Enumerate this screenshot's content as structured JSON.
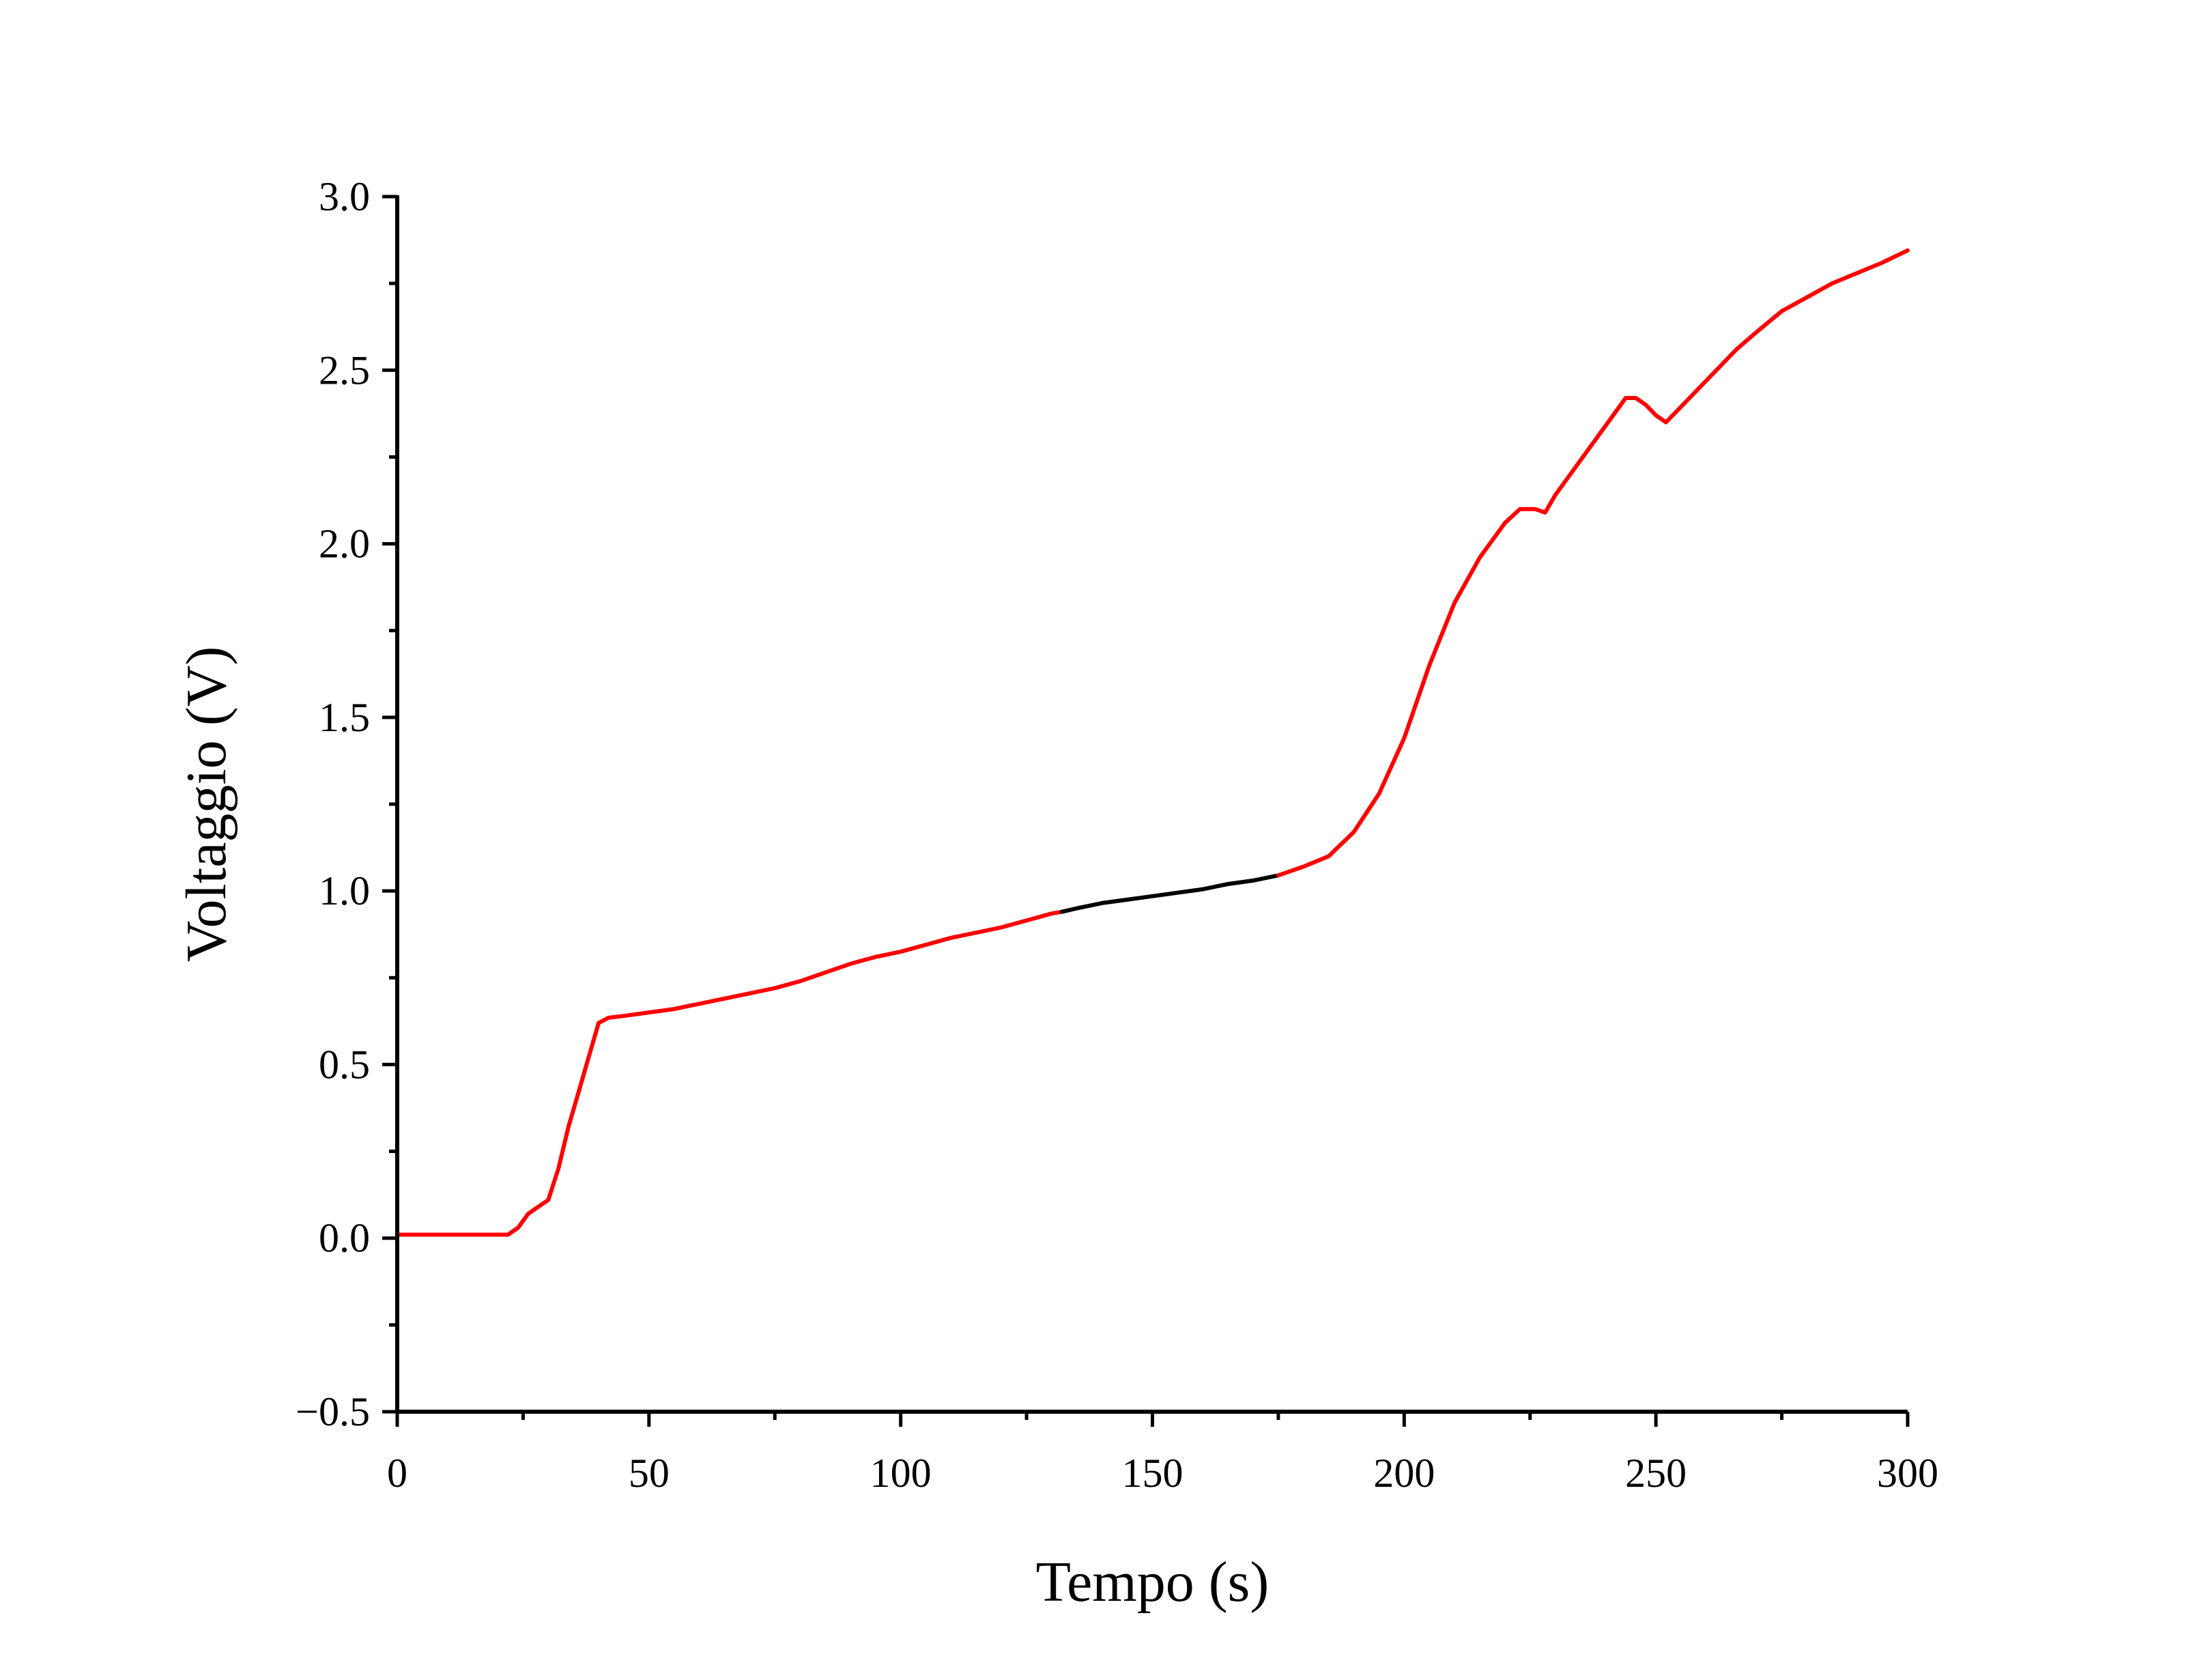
{
  "chart_data": {
    "type": "line",
    "title": "",
    "xlabel": "Tempo (s)",
    "ylabel": "Voltaggio (V)",
    "xlim": [
      0,
      300
    ],
    "ylim": [
      -0.5,
      3.0
    ],
    "xticks": [
      0,
      50,
      100,
      150,
      200,
      250,
      300
    ],
    "xtick_labels": [
      "0",
      "50",
      "100",
      "150",
      "200",
      "250",
      "300"
    ],
    "yticks": [
      -0.5,
      0.0,
      0.5,
      1.0,
      1.5,
      2.0,
      2.5,
      3.0
    ],
    "ytick_labels": [
      "−0.5",
      "0.0",
      "0.5",
      "1.0",
      "1.5",
      "2.0",
      "2.5",
      "3.0"
    ],
    "grid": false,
    "legend": "none",
    "series": [
      {
        "color": "#ff0000",
        "points": [
          [
            0,
            0.01
          ],
          [
            10,
            0.01
          ],
          [
            20,
            0.01
          ],
          [
            22,
            0.01
          ],
          [
            24,
            0.03
          ],
          [
            26,
            0.07
          ],
          [
            28,
            0.09
          ],
          [
            30,
            0.11
          ],
          [
            32,
            0.2
          ],
          [
            34,
            0.32
          ],
          [
            36,
            0.42
          ],
          [
            38,
            0.52
          ],
          [
            40,
            0.62
          ],
          [
            42,
            0.635
          ],
          [
            45,
            0.64
          ],
          [
            50,
            0.65
          ],
          [
            55,
            0.66
          ],
          [
            60,
            0.675
          ],
          [
            65,
            0.69
          ],
          [
            70,
            0.705
          ],
          [
            75,
            0.72
          ],
          [
            80,
            0.74
          ],
          [
            85,
            0.765
          ],
          [
            90,
            0.79
          ],
          [
            95,
            0.81
          ],
          [
            100,
            0.825
          ],
          [
            105,
            0.845
          ],
          [
            110,
            0.865
          ],
          [
            115,
            0.88
          ],
          [
            120,
            0.895
          ],
          [
            125,
            0.915
          ],
          [
            130,
            0.935
          ],
          [
            132,
            0.94
          ]
        ]
      },
      {
        "color": "#000000",
        "points": [
          [
            132,
            0.94
          ],
          [
            135,
            0.95
          ],
          [
            140,
            0.965
          ],
          [
            145,
            0.975
          ],
          [
            150,
            0.985
          ],
          [
            155,
            0.995
          ],
          [
            160,
            1.005
          ],
          [
            165,
            1.02
          ],
          [
            170,
            1.03
          ],
          [
            175,
            1.045
          ]
        ]
      },
      {
        "color": "#ff0000",
        "points": [
          [
            175,
            1.045
          ],
          [
            180,
            1.07
          ],
          [
            185,
            1.1
          ],
          [
            190,
            1.17
          ],
          [
            195,
            1.28
          ],
          [
            200,
            1.44
          ],
          [
            205,
            1.65
          ],
          [
            210,
            1.83
          ],
          [
            215,
            1.96
          ],
          [
            220,
            2.06
          ],
          [
            223,
            2.1
          ],
          [
            226,
            2.1
          ],
          [
            228,
            2.09
          ],
          [
            230,
            2.14
          ],
          [
            235,
            2.24
          ],
          [
            240,
            2.34
          ],
          [
            244,
            2.42
          ],
          [
            246,
            2.42
          ],
          [
            248,
            2.4
          ],
          [
            250,
            2.37
          ],
          [
            252,
            2.35
          ],
          [
            254,
            2.38
          ],
          [
            258,
            2.44
          ],
          [
            262,
            2.5
          ],
          [
            266,
            2.56
          ],
          [
            270,
            2.61
          ],
          [
            275,
            2.67
          ],
          [
            280,
            2.71
          ],
          [
            285,
            2.75
          ],
          [
            290,
            2.78
          ],
          [
            295,
            2.81
          ],
          [
            300,
            2.845
          ]
        ]
      }
    ]
  }
}
